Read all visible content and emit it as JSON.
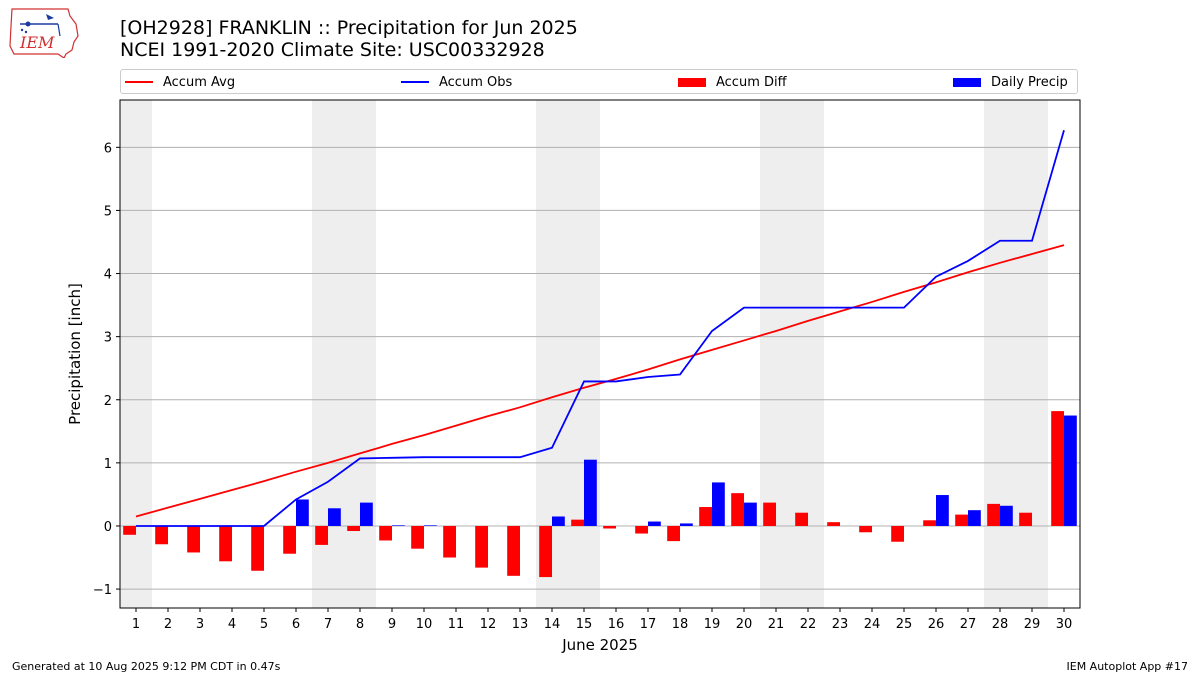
{
  "header": {
    "title_line1": "[OH2928] FRANKLIN :: Precipitation for Jun 2025",
    "title_line2": "NCEI 1991-2020 Climate Site: USC00332928"
  },
  "logo": {
    "text": "IEM",
    "icon": "iem-logo-icon"
  },
  "legend": {
    "position": "top, above plot",
    "items": [
      {
        "label": "Accum Avg",
        "kind": "line",
        "color": "#ff0000"
      },
      {
        "label": "Accum Obs",
        "kind": "line",
        "color": "#0000ff"
      },
      {
        "label": "Accum Diff",
        "kind": "bar",
        "color": "#ff0000"
      },
      {
        "label": "Daily Precip",
        "kind": "bar",
        "color": "#0000ff"
      }
    ]
  },
  "footer": {
    "left": "Generated at 10 Aug 2025 9:12 PM CDT in 0.47s",
    "right": "IEM Autoplot App #17"
  },
  "chart_data": {
    "type": "bar",
    "title": "[OH2928] FRANKLIN :: Precipitation for Jun 2025",
    "subtitle": "NCEI 1991-2020 Climate Site: USC00332928",
    "xlabel": "June 2025",
    "ylabel": "Precipitation [inch]",
    "x": [
      1,
      2,
      3,
      4,
      5,
      6,
      7,
      8,
      9,
      10,
      11,
      12,
      13,
      14,
      15,
      16,
      17,
      18,
      19,
      20,
      21,
      22,
      23,
      24,
      25,
      26,
      27,
      28,
      29,
      30
    ],
    "xlim": [
      0.5,
      30.5
    ],
    "ylim": [
      -1.3,
      6.75
    ],
    "yticks": [
      -1,
      0,
      1,
      2,
      3,
      4,
      5,
      6
    ],
    "grid": "horizontal",
    "weekend_shading": [
      [
        0.5,
        1.5
      ],
      [
        6.5,
        8.5
      ],
      [
        13.5,
        15.5
      ],
      [
        20.5,
        22.5
      ],
      [
        27.5,
        29.5
      ]
    ],
    "weekend_color": "#eeeeee",
    "series": [
      {
        "name": "Accum Avg",
        "kind": "line",
        "color": "#ff0000",
        "values": [
          0.15,
          0.29,
          0.43,
          0.57,
          0.71,
          0.86,
          1.0,
          1.15,
          1.3,
          1.44,
          1.59,
          1.74,
          1.88,
          2.04,
          2.19,
          2.33,
          2.48,
          2.64,
          2.79,
          2.94,
          3.09,
          3.25,
          3.4,
          3.55,
          3.71,
          3.86,
          4.02,
          4.17,
          4.31,
          4.45
        ]
      },
      {
        "name": "Accum Obs",
        "kind": "line",
        "color": "#0000ff",
        "values": [
          0,
          0,
          0,
          0,
          0,
          0.42,
          0.7,
          1.07,
          1.08,
          1.09,
          1.09,
          1.09,
          1.09,
          1.24,
          2.29,
          2.29,
          2.36,
          2.4,
          3.09,
          3.46,
          3.46,
          3.46,
          3.46,
          3.46,
          3.46,
          3.95,
          4.2,
          4.52,
          4.52,
          6.27
        ]
      },
      {
        "name": "Accum Diff",
        "kind": "bar",
        "color": "#ff0000",
        "values": [
          -0.14,
          -0.29,
          -0.42,
          -0.56,
          -0.71,
          -0.44,
          -0.3,
          -0.08,
          -0.23,
          -0.36,
          -0.5,
          -0.66,
          -0.79,
          -0.81,
          0.1,
          -0.04,
          -0.12,
          -0.24,
          0.3,
          0.52,
          0.37,
          0.21,
          0.06,
          -0.1,
          -0.25,
          0.09,
          0.18,
          0.35,
          0.21,
          1.82
        ]
      },
      {
        "name": "Daily Precip",
        "kind": "bar",
        "color": "#0000ff",
        "values": [
          0,
          0,
          0,
          0,
          0,
          0.42,
          0.28,
          0.37,
          0.01,
          0.01,
          0,
          0,
          0,
          0.15,
          1.05,
          0,
          0.07,
          0.04,
          0.69,
          0.37,
          0,
          0,
          0,
          0,
          0,
          0.49,
          0.25,
          0.32,
          0,
          1.75
        ]
      }
    ]
  }
}
